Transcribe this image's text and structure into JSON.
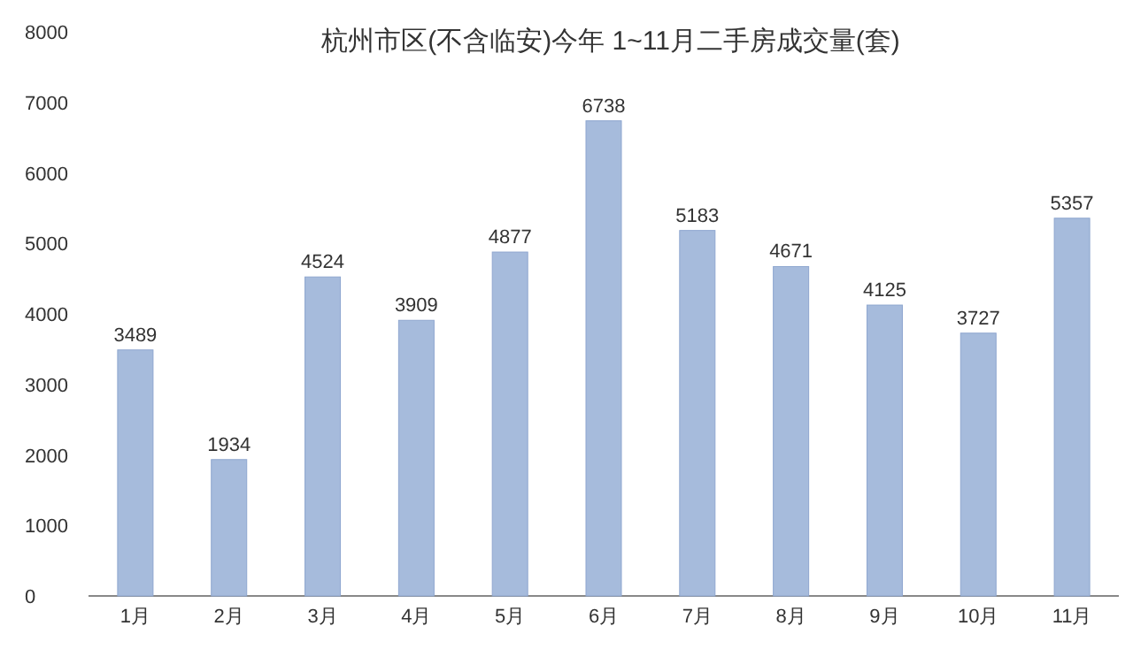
{
  "chart_data": {
    "type": "bar",
    "title": "杭州市区(不含临安)今年 1~11月二手房成交量(套)",
    "categories": [
      "1月",
      "2月",
      "3月",
      "4月",
      "5月",
      "6月",
      "7月",
      "8月",
      "9月",
      "10月",
      "11月"
    ],
    "values": [
      3489,
      1934,
      4524,
      3909,
      4877,
      6738,
      5183,
      4671,
      4125,
      3727,
      5357
    ],
    "color": "#a6bbdc",
    "ylim": [
      0,
      8000
    ],
    "yticks": [
      0,
      1000,
      2000,
      3000,
      4000,
      5000,
      6000,
      7000,
      8000
    ],
    "data_labels": true,
    "grid": false
  }
}
